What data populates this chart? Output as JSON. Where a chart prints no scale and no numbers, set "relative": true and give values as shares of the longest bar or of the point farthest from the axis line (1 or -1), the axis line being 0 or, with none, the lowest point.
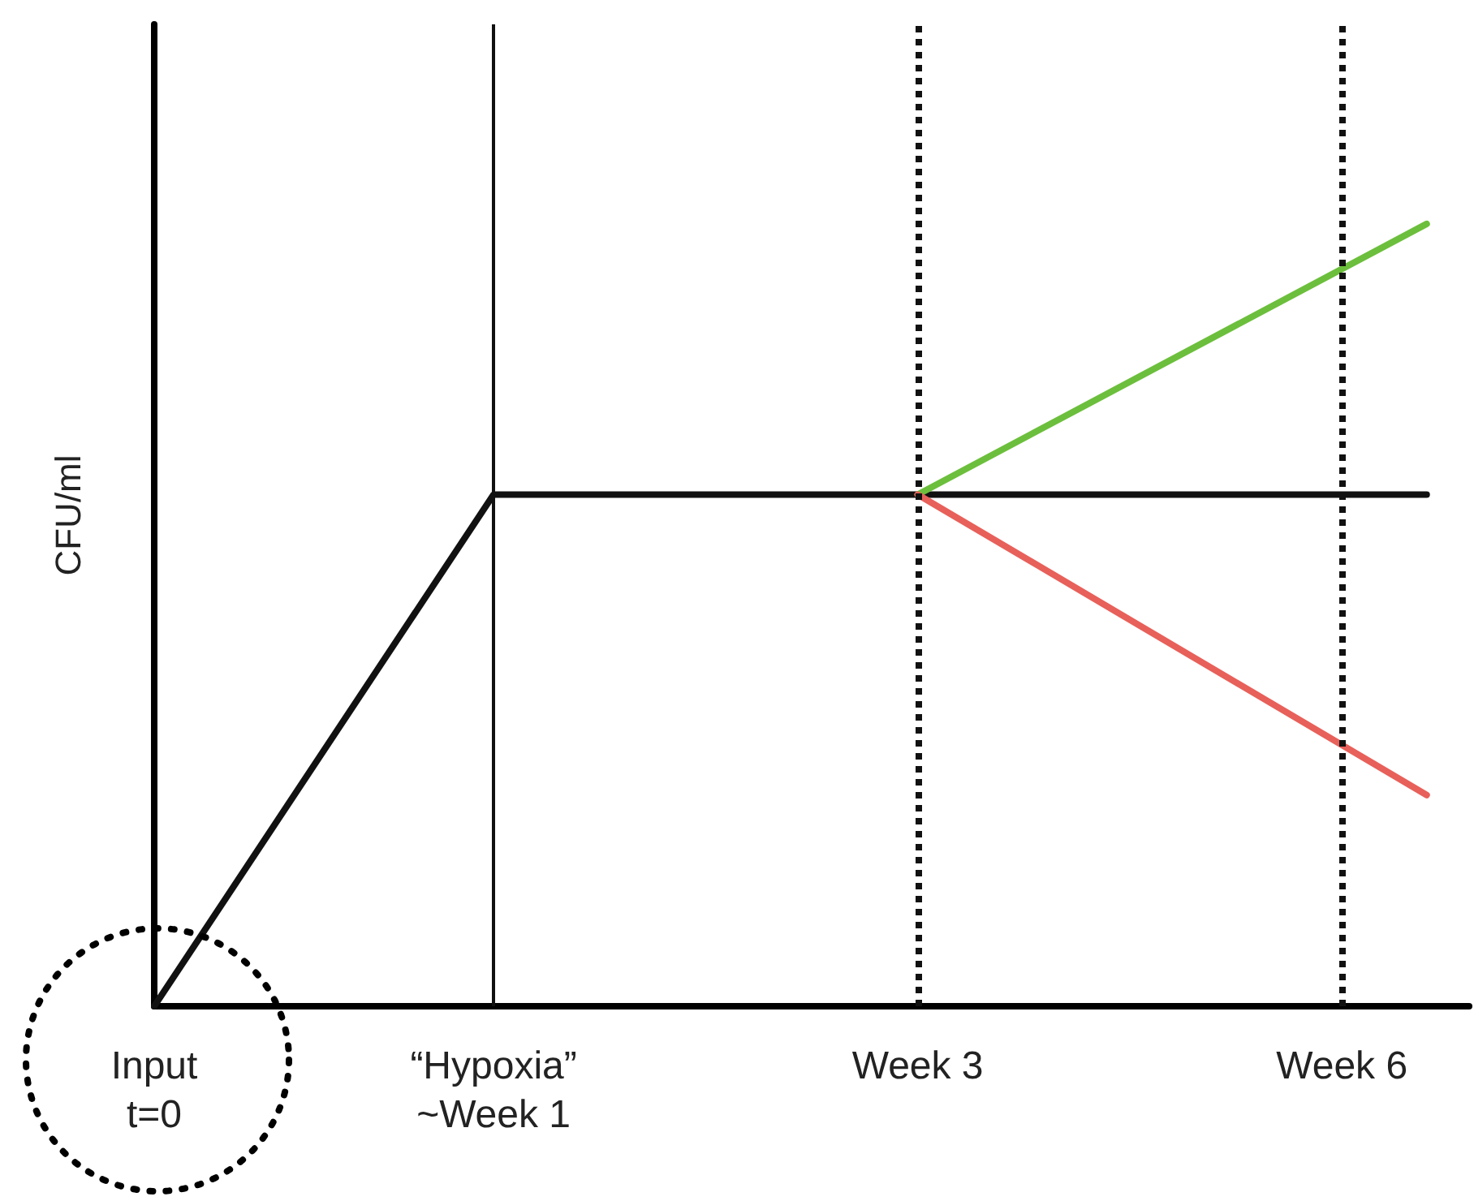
{
  "chart_data": {
    "type": "line",
    "relative": true,
    "ylabel": "CFU/ml",
    "categories": [
      "Input\nt=0",
      null,
      null,
      null,
      null,
      null,
      null,
      null,
      "“Hypoxia”\n~Week 1",
      null,
      null,
      null,
      null,
      null,
      null,
      null,
      null,
      null,
      "Week 3",
      null,
      null,
      null,
      null,
      null,
      null,
      null,
      null,
      null,
      "Week 6",
      null,
      null,
      null
    ],
    "tick_labels": "x",
    "grid": false,
    "line_style": "solid",
    "series": [
      {
        "color": "#111111",
        "values": [
          0,
          null,
          null,
          null,
          null,
          null,
          null,
          null,
          0.654,
          null,
          null,
          null,
          null,
          null,
          null,
          null,
          null,
          null,
          null,
          null,
          null,
          null,
          null,
          null,
          null,
          null,
          null,
          null,
          null,
          null,
          0.654,
          null
        ]
      },
      {
        "color": "#6cbf3c",
        "values": [
          null,
          null,
          null,
          null,
          null,
          null,
          null,
          null,
          null,
          null,
          null,
          null,
          null,
          null,
          null,
          null,
          null,
          null,
          0.654,
          null,
          null,
          null,
          null,
          null,
          null,
          null,
          null,
          null,
          null,
          null,
          1,
          null
        ]
      },
      {
        "color": "#e8605a",
        "values": [
          null,
          null,
          null,
          null,
          null,
          null,
          null,
          null,
          null,
          null,
          null,
          null,
          null,
          null,
          null,
          null,
          null,
          null,
          0.654,
          null,
          null,
          null,
          null,
          null,
          null,
          null,
          null,
          null,
          null,
          null,
          0.27,
          null
        ]
      }
    ],
    "ref_lines": [
      {
        "axis": "x",
        "value": "“Hypoxia”\n~Week 1",
        "line_style": "solid",
        "color": "#111111"
      },
      {
        "axis": "x",
        "value": "Week 3",
        "line_style": "dotted",
        "color": "#111111"
      },
      {
        "axis": "x",
        "value": "Week 6",
        "line_style": "dotted",
        "color": "#111111"
      }
    ]
  }
}
